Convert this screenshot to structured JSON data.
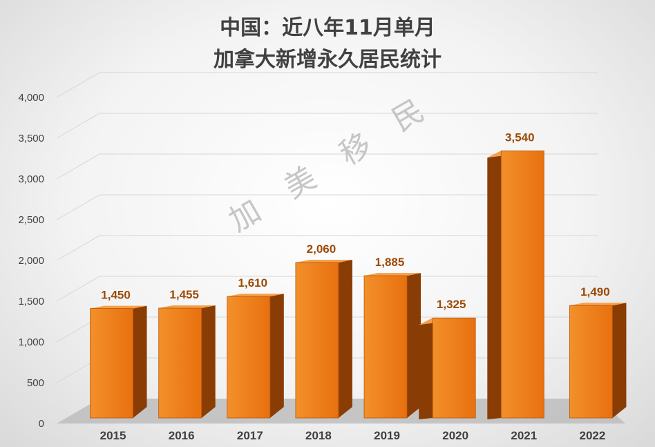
{
  "chart_data": {
    "type": "bar",
    "title_lines": [
      "中国：近八年11月单月",
      "加拿大新增永久居民统计"
    ],
    "categories": [
      "2015",
      "2016",
      "2017",
      "2018",
      "2019",
      "2020",
      "2021",
      "2022"
    ],
    "values": [
      1450,
      1455,
      1610,
      2060,
      1885,
      1325,
      3540,
      1490
    ],
    "data_labels": [
      "1,450",
      "1,455",
      "1,610",
      "2,060",
      "1,885",
      "1,325",
      "3,540",
      "1,490"
    ],
    "y_ticks": [
      "0",
      "500",
      "1,000",
      "1,500",
      "2,000",
      "2,500",
      "3,000",
      "3,500",
      "4,000"
    ],
    "ylim": [
      0,
      4000
    ],
    "xlabel": "",
    "ylabel": "",
    "grid": true,
    "style": "3d-column",
    "colors": {
      "bar_front": "#e8700f",
      "bar_front_highlight": "#f3902a",
      "bar_side": "#8a3c05",
      "bar_top": "#f6a04a",
      "label": "#9c4a06",
      "floor": "#bdbdbd"
    }
  },
  "watermark": {
    "chars": [
      "加",
      "美",
      "移",
      "民"
    ]
  }
}
